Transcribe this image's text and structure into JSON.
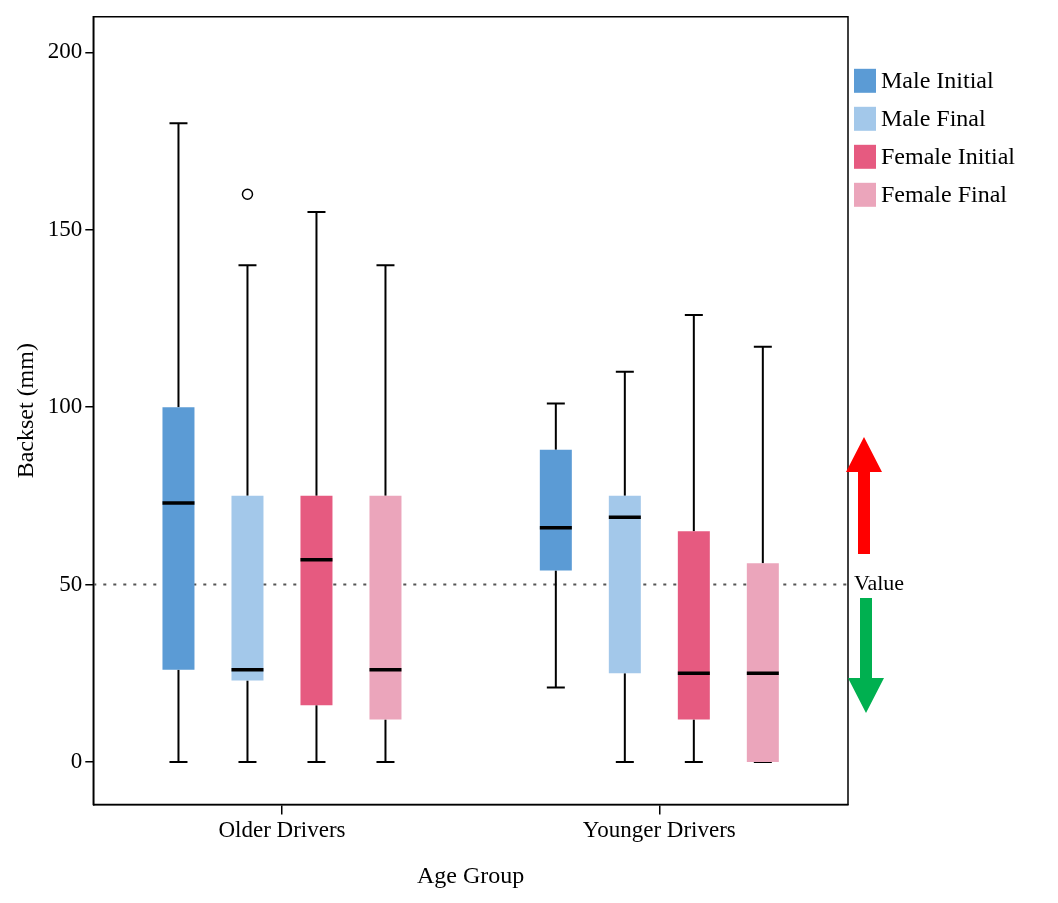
{
  "chart_data": {
    "type": "box",
    "xlabel": "Age Group",
    "ylabel": "Backset (mm)",
    "categories": [
      "Older Drivers",
      "Younger Drivers"
    ],
    "ylim": [
      -12,
      210
    ],
    "yticks": [
      0,
      50,
      100,
      150,
      200
    ],
    "grid": false,
    "legend": "right",
    "series": [
      {
        "name": "Male Initial",
        "color": "#5b9bd5",
        "boxes": [
          {
            "low": 0,
            "q1": 26,
            "median": 73,
            "q3": 100,
            "high": 180
          },
          {
            "low": 21,
            "q1": 54,
            "median": 66,
            "q3": 88,
            "high": 101
          }
        ]
      },
      {
        "name": "Male Final",
        "color": "#a3c8ea",
        "boxes": [
          {
            "low": 0,
            "q1": 23,
            "median": 26,
            "q3": 75,
            "high": 140,
            "outliers": [
              160
            ]
          },
          {
            "low": 0,
            "q1": 25,
            "median": 69,
            "q3": 75,
            "high": 110
          }
        ]
      },
      {
        "name": "Female Initial",
        "color": "#e65a80",
        "boxes": [
          {
            "low": 0,
            "q1": 16,
            "median": 57,
            "q3": 75,
            "high": 155
          },
          {
            "low": 0,
            "q1": 12,
            "median": 25,
            "q3": 65,
            "high": 126
          }
        ]
      },
      {
        "name": "Female Final",
        "color": "#eba5bb",
        "boxes": [
          {
            "low": 0,
            "q1": 12,
            "median": 26,
            "q3": 75,
            "high": 140
          },
          {
            "low": 0,
            "q1": 0,
            "median": 25,
            "q3": 56,
            "high": 117
          }
        ]
      }
    ],
    "ref_lines": [
      {
        "axis": "y",
        "value": 50,
        "label": "Value",
        "line_style": "dotted",
        "color": "#555555"
      }
    ]
  }
}
